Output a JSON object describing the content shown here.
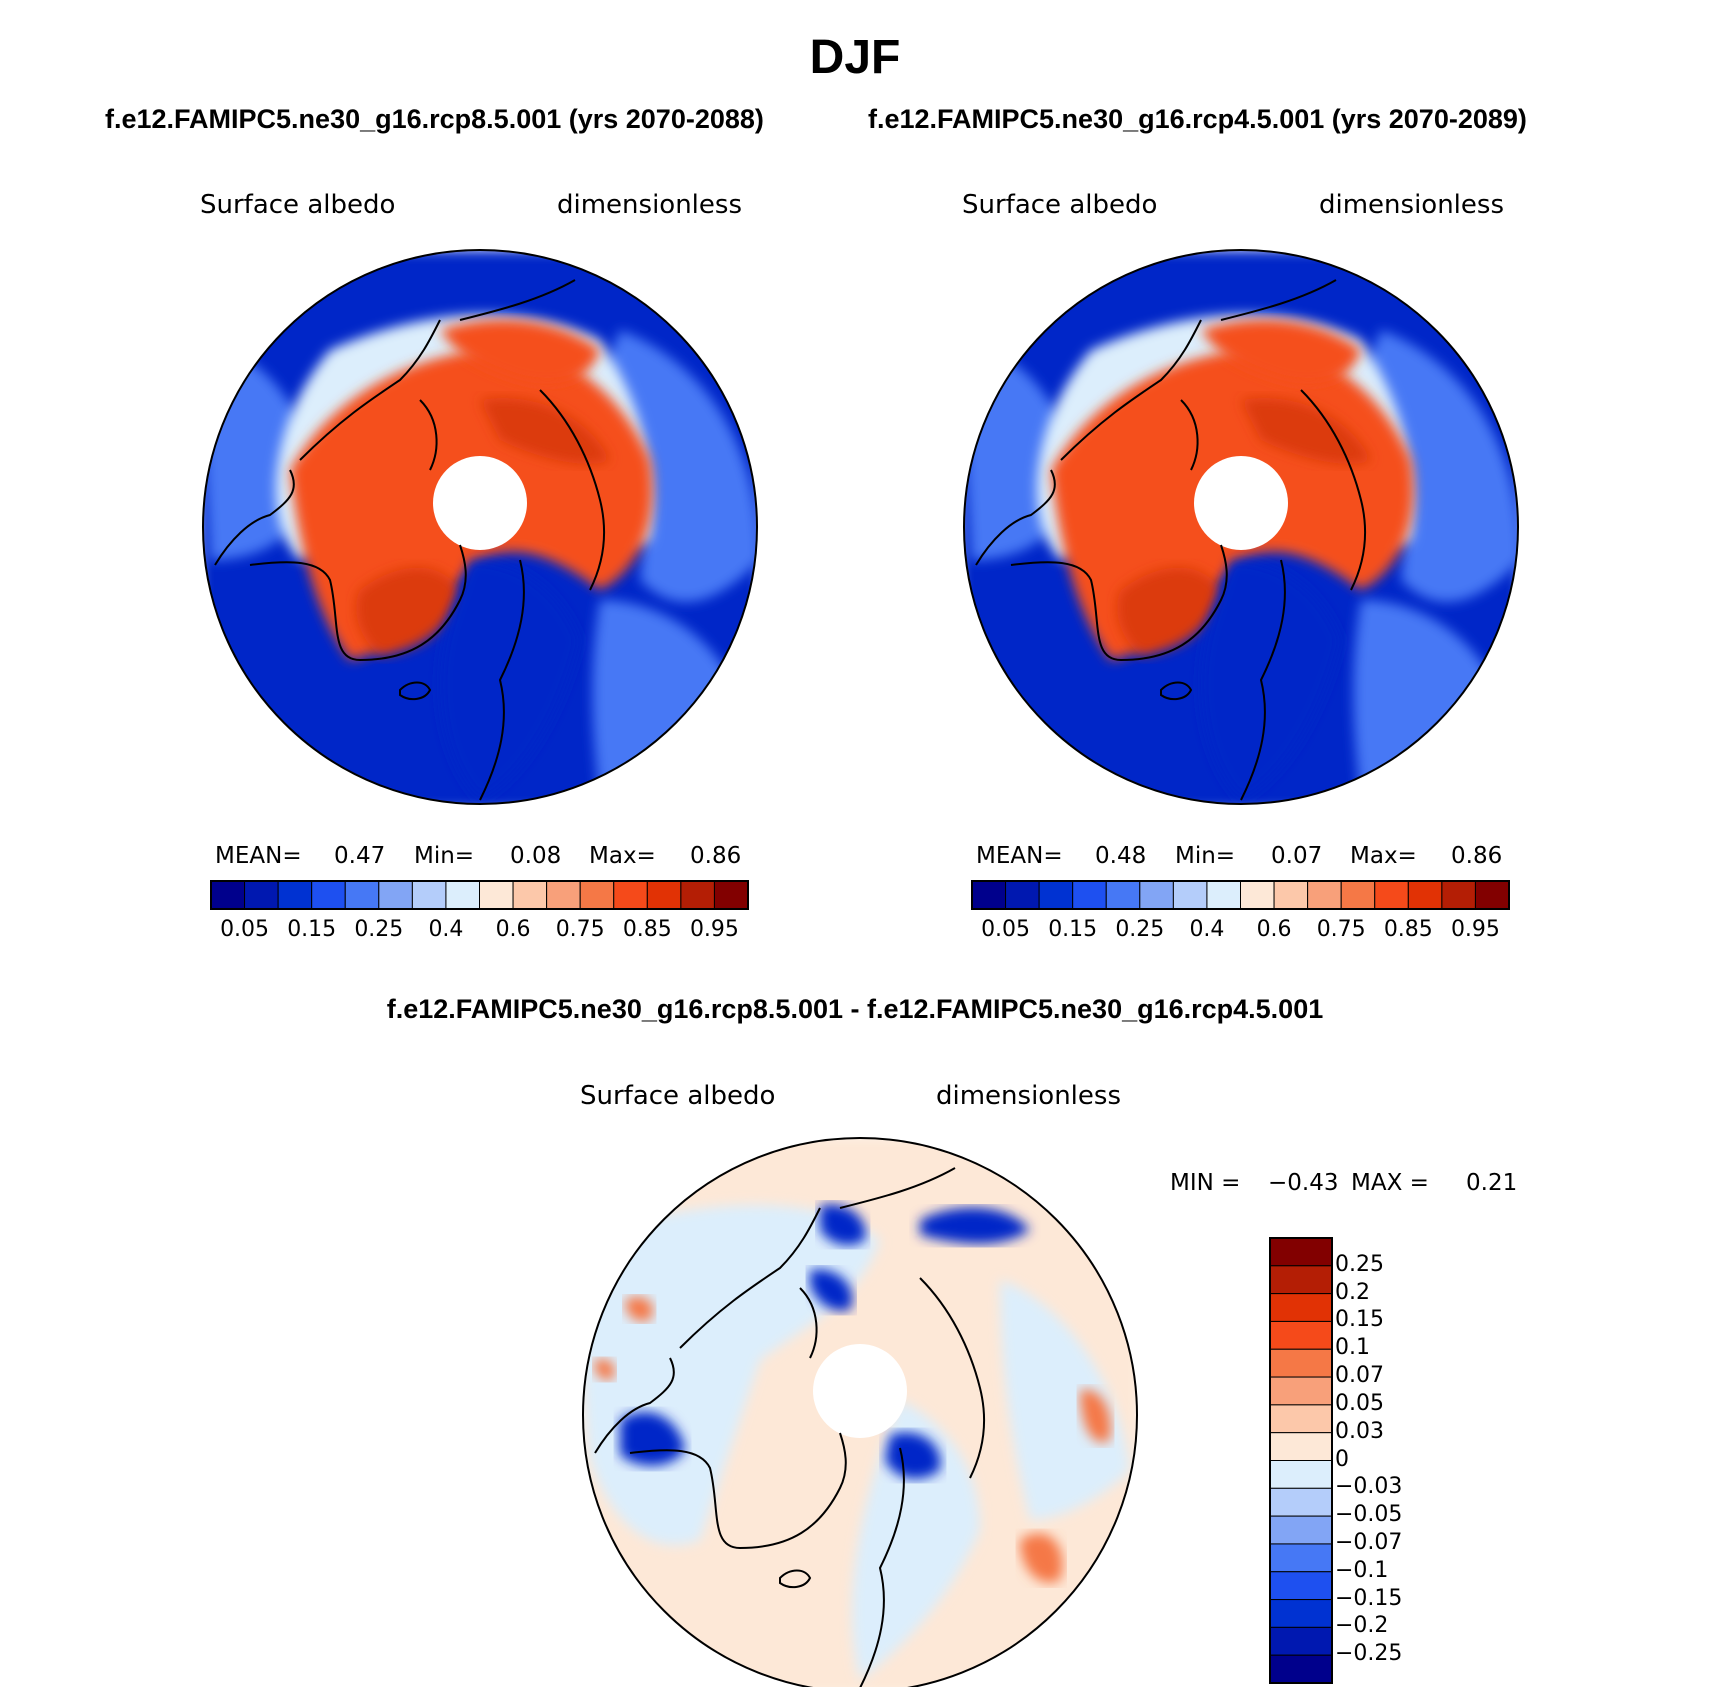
{
  "title": "DJF",
  "panels": [
    {
      "case_title": "f.e12.FAMIPC5.ne30_g16.rcp8.5.001 (yrs 2070-2088)",
      "variable": "Surface albedo",
      "units": "dimensionless",
      "mean_label": "MEAN=",
      "mean_value": "0.47",
      "min_label": "Min=",
      "min_value": "0.08",
      "max_label": "Max=",
      "max_value": "0.86"
    },
    {
      "case_title": "f.e12.FAMIPC5.ne30_g16.rcp4.5.001 (yrs 2070-2089)",
      "variable": "Surface albedo",
      "units": "dimensionless",
      "mean_label": "MEAN=",
      "mean_value": "0.48",
      "min_label": "Min=",
      "min_value": "0.07",
      "max_label": "Max=",
      "max_value": "0.86"
    }
  ],
  "colorbar_top": {
    "colors": [
      "#00008c",
      "#0018b0",
      "#0032d2",
      "#1e50f0",
      "#4678f5",
      "#82a5f5",
      "#b4cdfa",
      "#dceefc",
      "#fde8d7",
      "#fcc8aa",
      "#f8a07a",
      "#f57846",
      "#f54a1a",
      "#e13205",
      "#b41e05",
      "#820000"
    ],
    "tick_labels": [
      "0.05",
      "0.15",
      "0.25",
      "0.4",
      "0.6",
      "0.75",
      "0.85",
      "0.95"
    ]
  },
  "diff_panel": {
    "case_title": "f.e12.FAMIPC5.ne30_g16.rcp8.5.001 - f.e12.FAMIPC5.ne30_g16.rcp4.5.001",
    "variable": "Surface albedo",
    "units": "dimensionless",
    "min_label": "MIN =",
    "min_value": "−0.43",
    "max_label": "MAX =",
    "max_value": "0.21",
    "colors": [
      "#820000",
      "#b41e05",
      "#e13205",
      "#f54a1a",
      "#f57846",
      "#f8a07a",
      "#fcc8aa",
      "#fde8d7",
      "#dceefc",
      "#b4cdfa",
      "#82a5f5",
      "#4678f5",
      "#1e50f0",
      "#0032d2",
      "#0018b0",
      "#00008c"
    ],
    "tick_labels": [
      "0.25",
      "0.2",
      "0.15",
      "0.1",
      "0.07",
      "0.05",
      "0.03",
      "0",
      "−0.03",
      "−0.05",
      "−0.07",
      "−0.1",
      "−0.15",
      "−0.2",
      "−0.25"
    ]
  },
  "map_colors": {
    "ocean_low": "#0028c8",
    "ocean_mid": "#4678f5",
    "land_light": "#dceefc",
    "land_high": "#f5501e",
    "land_peak": "#dc3a0a",
    "diff_base": "#fde8d7",
    "diff_neg": "#dceefc",
    "diff_strong_neg": "#0028c8",
    "diff_pos": "#f57846"
  }
}
